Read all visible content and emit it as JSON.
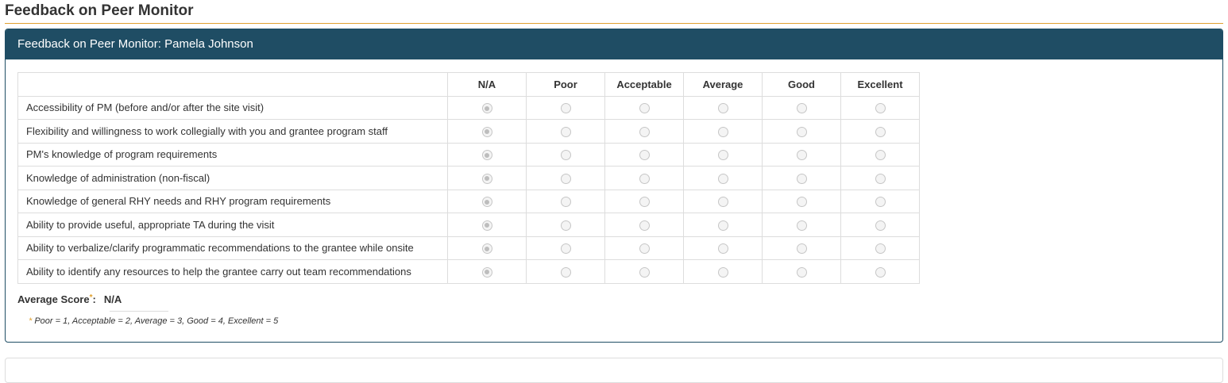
{
  "page_title": "Feedback on Peer Monitor",
  "panel": {
    "title": "Feedback on Peer Monitor: Pamela Johnson",
    "columns": [
      "N/A",
      "Poor",
      "Acceptable",
      "Average",
      "Good",
      "Excellent"
    ],
    "rows": [
      {
        "label": "Accessibility of PM (before and/or after the site visit)",
        "selected": "N/A"
      },
      {
        "label": "Flexibility and willingness to work collegially with you and grantee program staff",
        "selected": "N/A"
      },
      {
        "label": "PM's knowledge of program requirements",
        "selected": "N/A"
      },
      {
        "label": "Knowledge of administration (non-fiscal)",
        "selected": "N/A"
      },
      {
        "label": "Knowledge of general RHY needs and RHY program requirements",
        "selected": "N/A"
      },
      {
        "label": "Ability to provide useful, appropriate TA during the visit",
        "selected": "N/A"
      },
      {
        "label": "Ability to verbalize/clarify programmatic recommendations to the grantee while onsite",
        "selected": "N/A"
      },
      {
        "label": "Ability to identify any resources to help the grantee carry out team recommendations",
        "selected": "N/A"
      }
    ],
    "radios_disabled": true,
    "average_score": {
      "label": "Average Score",
      "marker": "*",
      "suffix": ":",
      "value": "N/A"
    },
    "note": {
      "marker": "*",
      "text": " Poor = 1, Acceptable = 2, Average = 3, Good = 4, Excellent = 5"
    }
  },
  "colors": {
    "header_bg": "#1f4d64",
    "accent_rule": "#e0a030"
  }
}
